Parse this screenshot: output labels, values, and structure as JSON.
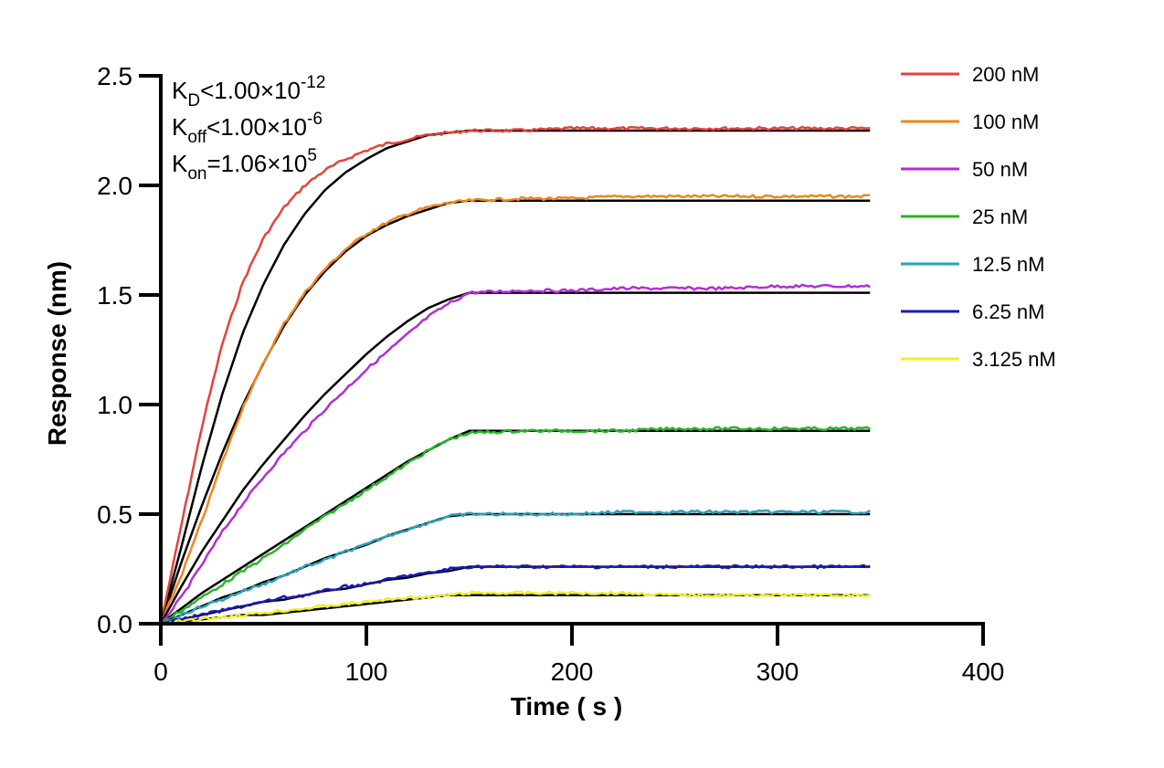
{
  "chart_data": {
    "type": "line",
    "title": "",
    "xlabel": "Time ( s )",
    "ylabel": "Response (nm)",
    "xlim": [
      0,
      400
    ],
    "ylim": [
      0.0,
      2.5
    ],
    "xticks": [
      0,
      100,
      200,
      300,
      400
    ],
    "xtick_labels": [
      "0",
      "100",
      "200",
      "300",
      "400"
    ],
    "yticks": [
      0.0,
      0.5,
      1.0,
      1.5,
      2.0,
      2.5
    ],
    "ytick_labels": [
      "0.0",
      "0.5",
      "1.0",
      "1.5",
      "2.0",
      "2.5"
    ],
    "grid": false,
    "legend_position": "right",
    "annotations": [
      {
        "main": "K",
        "sub": "D",
        "rest": "<1.00×10",
        "sup": "-12"
      },
      {
        "main": "K",
        "sub": "off",
        "rest": "<1.00×10",
        "sup": "-6"
      },
      {
        "main": "K",
        "sub": "on",
        "rest": "=1.06×10",
        "sup": "5"
      }
    ],
    "x": [
      0,
      10,
      20,
      30,
      40,
      50,
      60,
      70,
      80,
      90,
      100,
      110,
      120,
      130,
      140,
      150,
      175,
      200,
      225,
      250,
      275,
      300,
      325,
      345
    ],
    "series": [
      {
        "name": "200 nM",
        "color": "#e8413c",
        "values": [
          0.0,
          0.45,
          0.9,
          1.28,
          1.56,
          1.76,
          1.9,
          2.0,
          2.07,
          2.12,
          2.16,
          2.19,
          2.21,
          2.23,
          2.24,
          2.25,
          2.25,
          2.26,
          2.26,
          2.26,
          2.26,
          2.26,
          2.26,
          2.26
        ],
        "fit": [
          0.0,
          0.35,
          0.72,
          1.05,
          1.33,
          1.55,
          1.73,
          1.87,
          1.98,
          2.06,
          2.12,
          2.17,
          2.2,
          2.23,
          2.24,
          2.25,
          2.25,
          2.25,
          2.25,
          2.25,
          2.25,
          2.25,
          2.25,
          2.25
        ]
      },
      {
        "name": "100 nM",
        "color": "#f0861a",
        "values": [
          0.0,
          0.22,
          0.47,
          0.74,
          0.99,
          1.19,
          1.37,
          1.51,
          1.62,
          1.71,
          1.78,
          1.83,
          1.87,
          1.9,
          1.92,
          1.93,
          1.94,
          1.94,
          1.95,
          1.95,
          1.95,
          1.95,
          1.95,
          1.95
        ],
        "fit": [
          0.0,
          0.28,
          0.54,
          0.78,
          1.0,
          1.19,
          1.36,
          1.5,
          1.61,
          1.7,
          1.77,
          1.82,
          1.86,
          1.89,
          1.92,
          1.93,
          1.93,
          1.93,
          1.93,
          1.93,
          1.93,
          1.93,
          1.93,
          1.93
        ]
      },
      {
        "name": "50 nM",
        "color": "#b22ed6",
        "values": [
          0.0,
          0.12,
          0.27,
          0.42,
          0.55,
          0.67,
          0.78,
          0.88,
          0.98,
          1.07,
          1.16,
          1.24,
          1.32,
          1.4,
          1.46,
          1.51,
          1.52,
          1.52,
          1.53,
          1.53,
          1.53,
          1.54,
          1.54,
          1.54
        ],
        "fit": [
          0.0,
          0.17,
          0.33,
          0.47,
          0.61,
          0.73,
          0.84,
          0.95,
          1.05,
          1.14,
          1.23,
          1.31,
          1.38,
          1.44,
          1.48,
          1.51,
          1.51,
          1.51,
          1.51,
          1.51,
          1.51,
          1.51,
          1.51,
          1.51
        ]
      },
      {
        "name": "25 nM",
        "color": "#26b526",
        "values": [
          0.0,
          0.06,
          0.12,
          0.18,
          0.24,
          0.3,
          0.36,
          0.43,
          0.49,
          0.55,
          0.61,
          0.67,
          0.73,
          0.79,
          0.84,
          0.87,
          0.88,
          0.88,
          0.88,
          0.89,
          0.89,
          0.89,
          0.89,
          0.89
        ],
        "fit": [
          0.0,
          0.07,
          0.14,
          0.2,
          0.26,
          0.32,
          0.38,
          0.44,
          0.5,
          0.56,
          0.62,
          0.68,
          0.74,
          0.79,
          0.84,
          0.88,
          0.88,
          0.88,
          0.88,
          0.88,
          0.88,
          0.88,
          0.88,
          0.88
        ]
      },
      {
        "name": "12.5 nM",
        "color": "#2aa2b8",
        "values": [
          0.0,
          0.04,
          0.08,
          0.11,
          0.15,
          0.18,
          0.22,
          0.26,
          0.29,
          0.33,
          0.36,
          0.4,
          0.43,
          0.46,
          0.49,
          0.5,
          0.5,
          0.5,
          0.51,
          0.51,
          0.51,
          0.51,
          0.51,
          0.51
        ],
        "fit": [
          0.0,
          0.04,
          0.08,
          0.12,
          0.15,
          0.19,
          0.22,
          0.26,
          0.3,
          0.33,
          0.36,
          0.4,
          0.43,
          0.46,
          0.49,
          0.5,
          0.5,
          0.5,
          0.5,
          0.5,
          0.5,
          0.5,
          0.5,
          0.5
        ]
      },
      {
        "name": "6.25 nM",
        "color": "#1a1ab8",
        "values": [
          0.0,
          0.02,
          0.04,
          0.06,
          0.08,
          0.1,
          0.12,
          0.13,
          0.15,
          0.17,
          0.18,
          0.2,
          0.22,
          0.23,
          0.25,
          0.26,
          0.26,
          0.26,
          0.26,
          0.26,
          0.26,
          0.26,
          0.26,
          0.26
        ],
        "fit": [
          0.0,
          0.02,
          0.04,
          0.06,
          0.08,
          0.1,
          0.11,
          0.13,
          0.15,
          0.16,
          0.18,
          0.2,
          0.21,
          0.23,
          0.24,
          0.26,
          0.26,
          0.26,
          0.26,
          0.26,
          0.26,
          0.26,
          0.26,
          0.26
        ]
      },
      {
        "name": "3.125 nM",
        "color": "#f2ee22",
        "values": [
          0.0,
          0.01,
          0.02,
          0.03,
          0.04,
          0.05,
          0.06,
          0.07,
          0.08,
          0.09,
          0.1,
          0.11,
          0.12,
          0.12,
          0.13,
          0.14,
          0.14,
          0.14,
          0.14,
          0.13,
          0.13,
          0.13,
          0.13,
          0.13
        ],
        "fit": [
          0.0,
          0.01,
          0.02,
          0.03,
          0.04,
          0.04,
          0.05,
          0.06,
          0.07,
          0.08,
          0.09,
          0.1,
          0.11,
          0.12,
          0.13,
          0.13,
          0.13,
          0.13,
          0.13,
          0.13,
          0.13,
          0.13,
          0.13,
          0.13
        ]
      }
    ],
    "fit_color": "#000000"
  }
}
